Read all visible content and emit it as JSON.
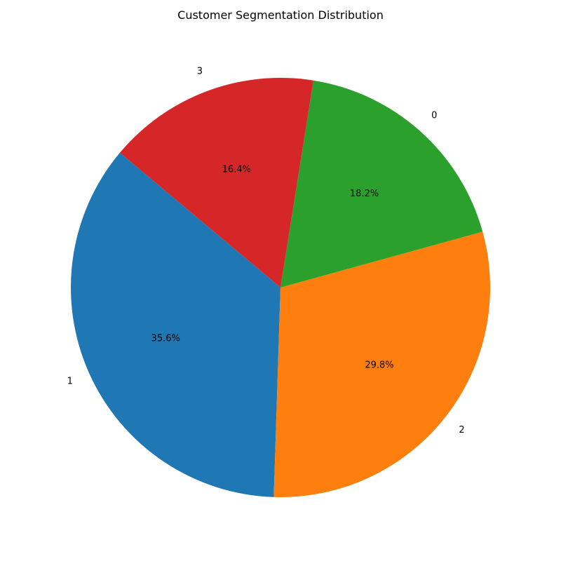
{
  "chart_data": {
    "type": "pie",
    "title": "Customer Segmentation Distribution",
    "start_angle_deg": 140,
    "direction": "counterclockwise",
    "slices": [
      {
        "label": "1",
        "value": 35.6,
        "pct_label": "35.6%",
        "color": "#1f77b4"
      },
      {
        "label": "2",
        "value": 29.8,
        "pct_label": "29.8%",
        "color": "#ff7f0e"
      },
      {
        "label": "0",
        "value": 18.2,
        "pct_label": "18.2%",
        "color": "#2ca02c"
      },
      {
        "label": "3",
        "value": 16.4,
        "pct_label": "16.4%",
        "color": "#d62728"
      }
    ]
  }
}
